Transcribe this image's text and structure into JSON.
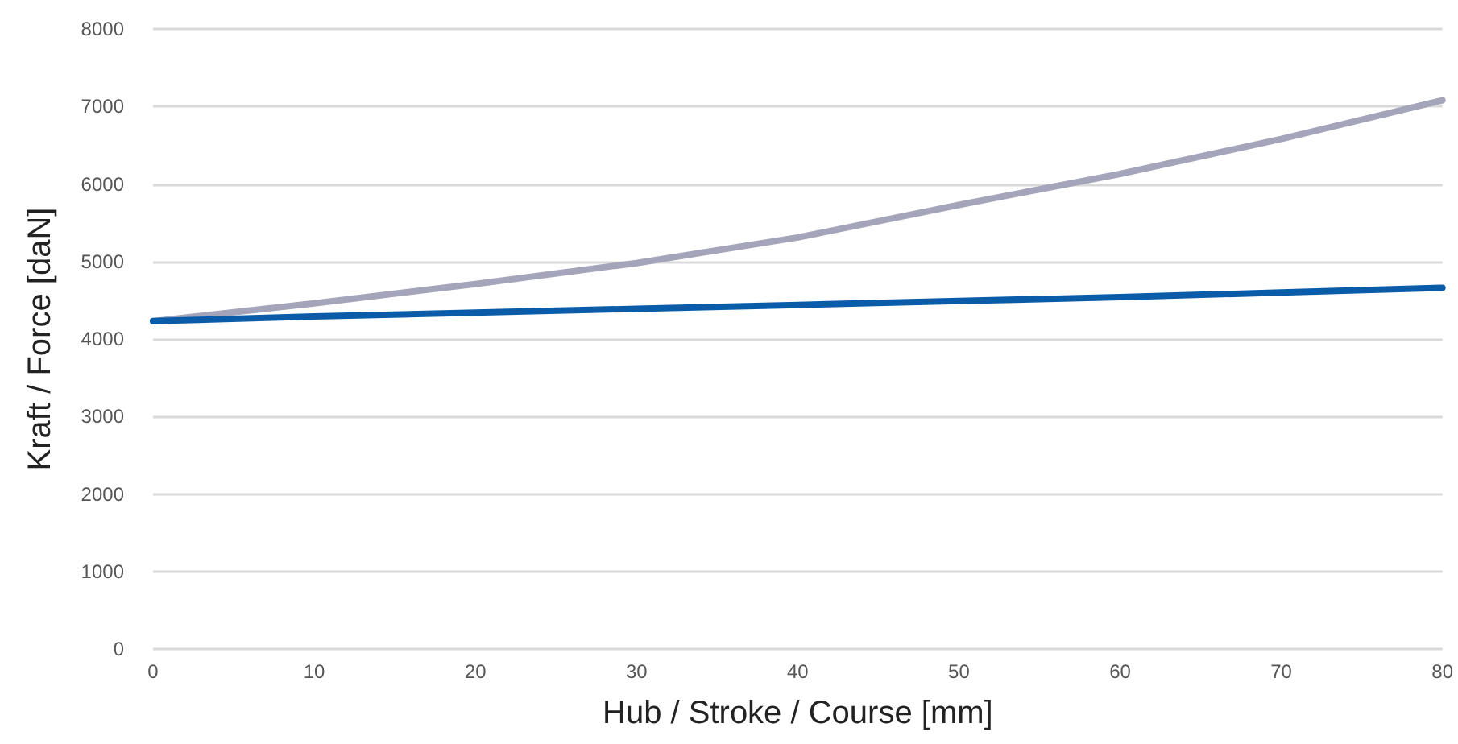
{
  "chart_data": {
    "type": "line",
    "xlabel": "Hub / Stroke / Course [mm]",
    "ylabel": "Kraft / Force [daN]",
    "x": [
      0,
      10,
      20,
      30,
      40,
      50,
      60,
      70,
      80
    ],
    "series": [
      {
        "color": "#a4a4ba",
        "values": [
          4230,
          4460,
          4710,
          4980,
          5310,
          5730,
          6130,
          6580,
          7080
        ]
      },
      {
        "color": "#0a5ca8",
        "values": [
          4230,
          4290,
          4340,
          4390,
          4440,
          4490,
          4540,
          4600,
          4660
        ]
      }
    ],
    "xlim": [
      0,
      80
    ],
    "xticks": [
      0,
      10,
      20,
      30,
      40,
      50,
      60,
      70,
      80
    ],
    "ylim": [
      0,
      8000
    ],
    "yticks": [
      0,
      1000,
      2000,
      3000,
      4000,
      5000,
      6000,
      7000,
      8000
    ],
    "grid": "y",
    "marker": "none",
    "line_style": "solid"
  }
}
